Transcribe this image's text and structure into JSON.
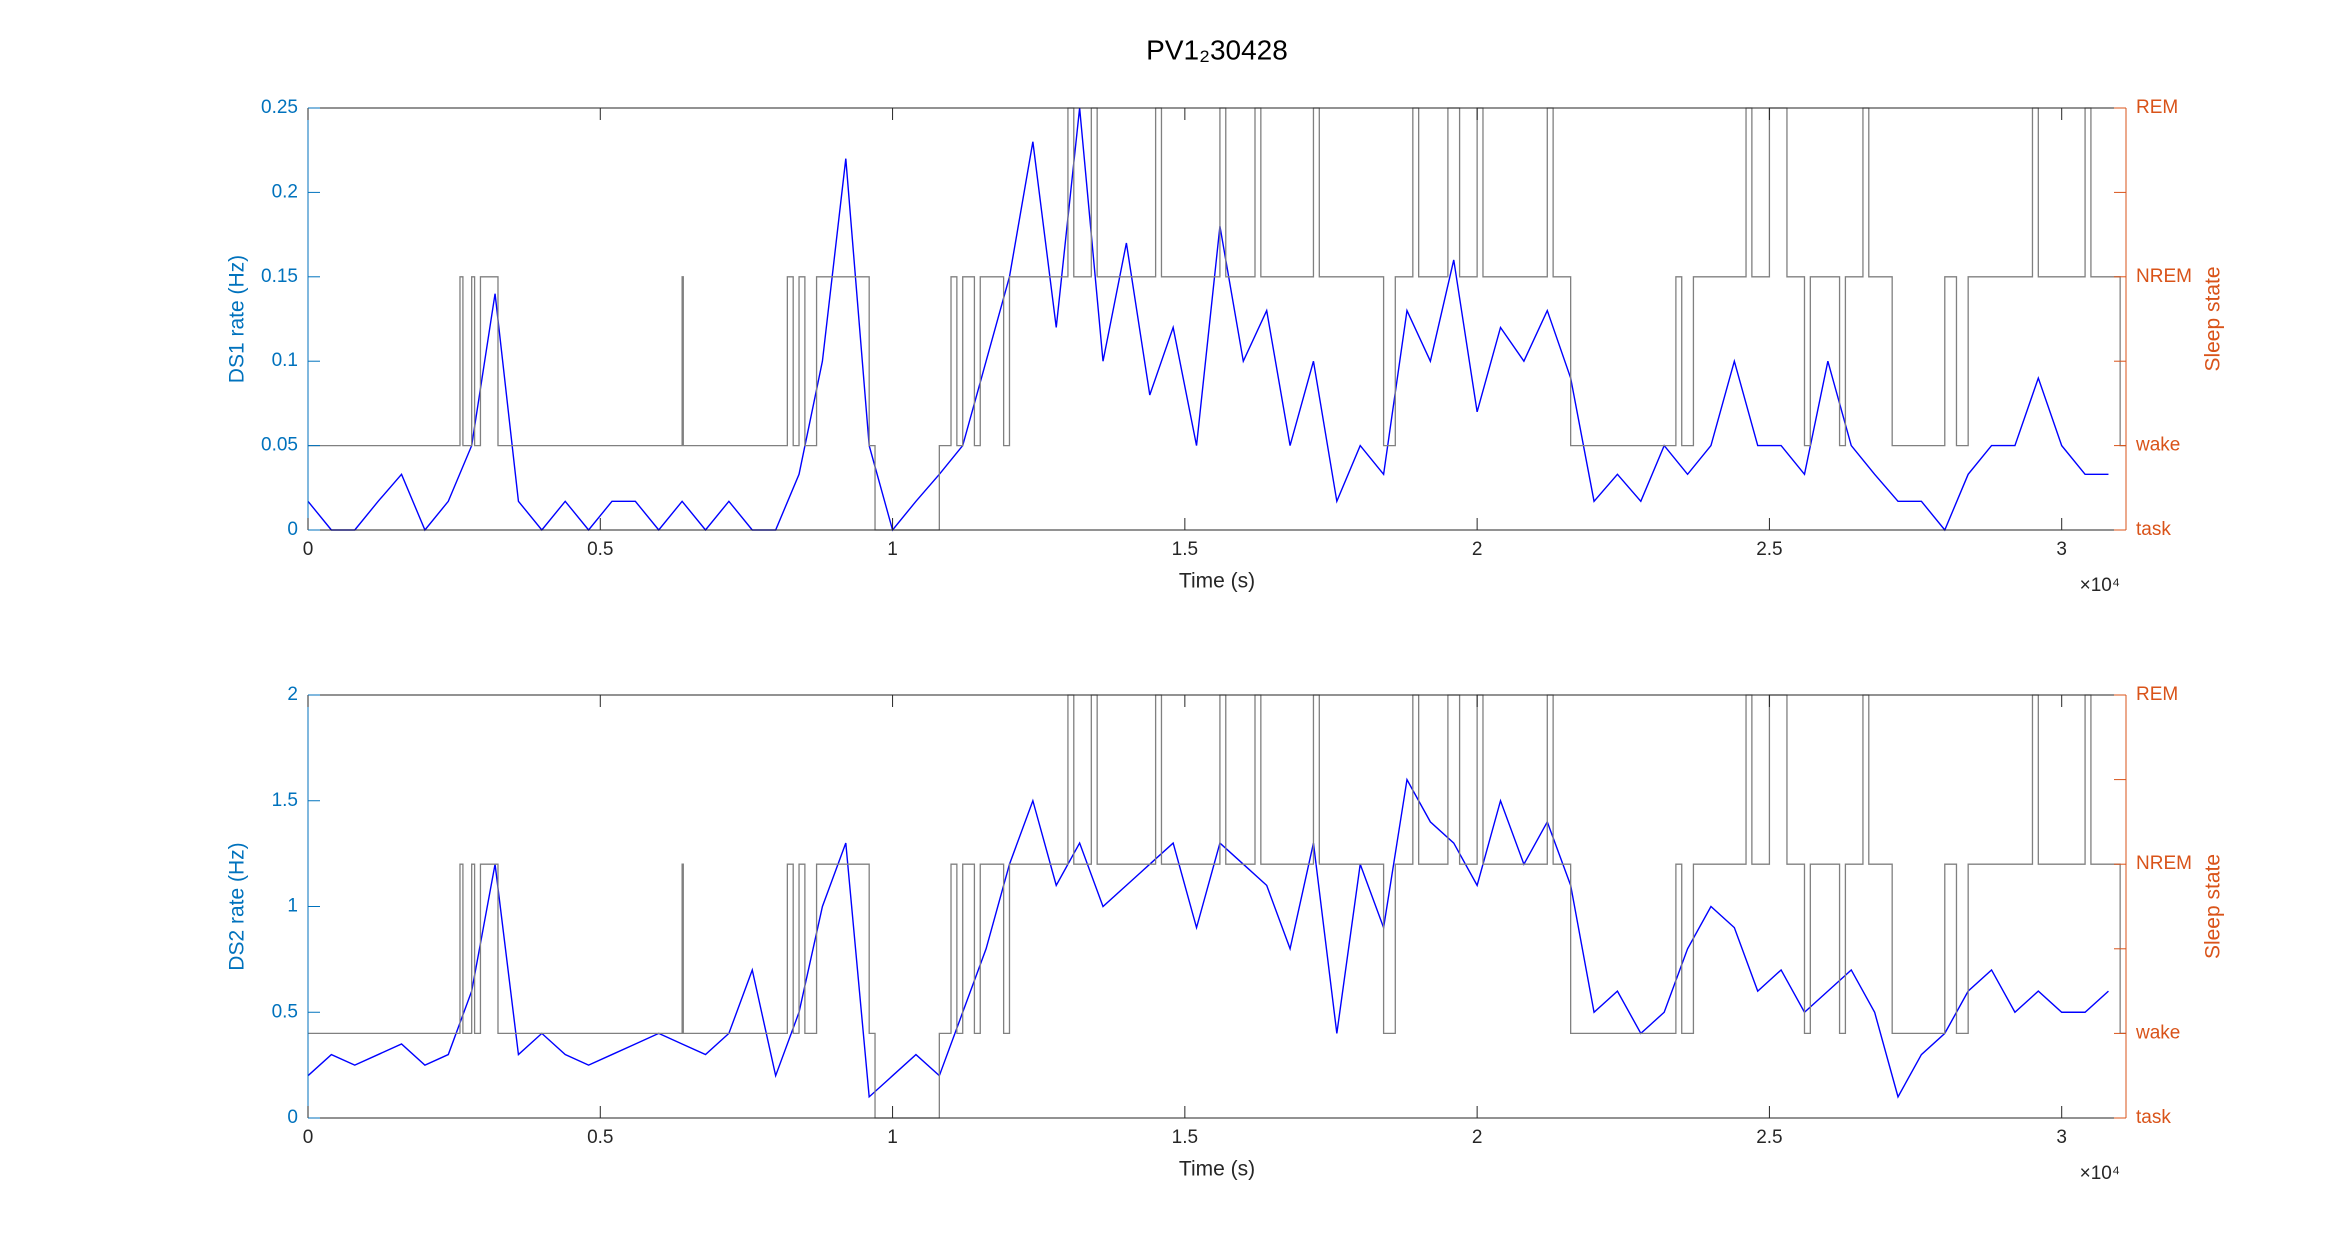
{
  "chart_data": [
    {
      "type": "line",
      "title": "PV1₂30428",
      "xlabel": "Time (s)",
      "ylabel": "DS1 rate (Hz)",
      "y2label": "Sleep state",
      "x_exponent": "×10⁴",
      "xlim": [
        0,
        31100
      ],
      "xticks": [
        {
          "value": 0,
          "label": "0"
        },
        {
          "value": 5000,
          "label": "0.5"
        },
        {
          "value": 10000,
          "label": "1"
        },
        {
          "value": 15000,
          "label": "1.5"
        },
        {
          "value": 20000,
          "label": "2"
        },
        {
          "value": 25000,
          "label": "2.5"
        },
        {
          "value": 30000,
          "label": "3"
        }
      ],
      "ylim": [
        0,
        0.25
      ],
      "yticks": [
        0,
        0.05,
        0.1,
        0.15,
        0.2,
        0.25
      ],
      "y2lim": [
        0,
        5
      ],
      "y2ticks": [
        {
          "value": 0,
          "label": "task"
        },
        {
          "value": 1,
          "label": "wake"
        },
        {
          "value": 3,
          "label": "NREM"
        },
        {
          "value": 5,
          "label": "REM"
        }
      ],
      "y2minorticks": [
        2,
        4
      ],
      "series": [
        {
          "color": "#0000ff",
          "x": [
            0,
            400,
            800,
            1200,
            1600,
            2000,
            2400,
            2800,
            3200,
            3600,
            4000,
            4400,
            4800,
            5200,
            5600,
            6000,
            6400,
            6800,
            7200,
            7600,
            8000,
            8400,
            8800,
            9200,
            9600,
            10000,
            10400,
            10800,
            11200,
            11600,
            12000,
            12400,
            12800,
            13200,
            13600,
            14000,
            14400,
            14800,
            15200,
            15600,
            16000,
            16400,
            16800,
            17200,
            17600,
            18000,
            18400,
            18800,
            19200,
            19600,
            20000,
            20400,
            20800,
            21200,
            21600,
            22000,
            22400,
            22800,
            23200,
            23600,
            24000,
            24400,
            24800,
            25200,
            25600,
            26000,
            26400,
            26800,
            27200,
            27600,
            28000,
            28400,
            28800,
            29200,
            29600,
            30000,
            30400,
            30800
          ],
          "values": [
            0.017,
            0,
            0,
            0.017,
            0.033,
            0,
            0.017,
            0.05,
            0.14,
            0.017,
            0,
            0.017,
            0,
            0.017,
            0.017,
            0,
            0.017,
            0,
            0.017,
            0,
            0,
            0.033,
            0.1,
            0.22,
            0.05,
            0,
            0.017,
            0.033,
            0.05,
            0.1,
            0.15,
            0.23,
            0.12,
            0.25,
            0.1,
            0.17,
            0.08,
            0.12,
            0.05,
            0.18,
            0.1,
            0.13,
            0.05,
            0.1,
            0.017,
            0.05,
            0.033,
            0.13,
            0.1,
            0.16,
            0.07,
            0.12,
            0.1,
            0.13,
            0.09,
            0.017,
            0.033,
            0.017,
            0.05,
            0.033,
            0.05,
            0.1,
            0.05,
            0.05,
            0.033,
            0.1,
            0.05,
            0.033,
            0.017,
            0.017,
            0,
            0.033,
            0.05,
            0.05,
            0.09,
            0.05,
            0.033,
            0.033
          ]
        },
        {
          "color": "#808080",
          "axis": "y2",
          "step": true,
          "x": [
            0,
            2600,
            2650,
            2800,
            2850,
            2950,
            3250,
            6400,
            6420,
            8200,
            8300,
            8400,
            8500,
            8700,
            9600,
            9700,
            10800,
            11000,
            11100,
            11200,
            11400,
            11500,
            11900,
            12000,
            13000,
            13100,
            13400,
            13500,
            14500,
            14600,
            15600,
            15700,
            16200,
            16300,
            17200,
            17300,
            18400,
            18600,
            18900,
            19000,
            19500,
            19700,
            20000,
            20100,
            21200,
            21300,
            21600,
            23400,
            23500,
            23700,
            24600,
            24700,
            25000,
            25300,
            25600,
            25700,
            26200,
            26300,
            26600,
            26700,
            27100,
            28000,
            28200,
            28400,
            29500,
            29600,
            30400,
            30500,
            31000
          ],
          "values": [
            1,
            3,
            1,
            3,
            1,
            3,
            1,
            3,
            1,
            3,
            1,
            3,
            1,
            3,
            1,
            0,
            1,
            3,
            1,
            3,
            1,
            3,
            1,
            3,
            5,
            3,
            5,
            3,
            5,
            3,
            5,
            3,
            5,
            3,
            5,
            3,
            1,
            3,
            5,
            3,
            5,
            3,
            5,
            3,
            5,
            3,
            1,
            3,
            1,
            3,
            5,
            3,
            5,
            3,
            1,
            3,
            1,
            3,
            5,
            3,
            1,
            3,
            1,
            3,
            5,
            3,
            5,
            3,
            1
          ]
        }
      ]
    },
    {
      "type": "line",
      "xlabel": "Time (s)",
      "ylabel": "DS2 rate (Hz)",
      "y2label": "Sleep state",
      "x_exponent": "×10⁴",
      "xlim": [
        0,
        31100
      ],
      "xticks": [
        {
          "value": 0,
          "label": "0"
        },
        {
          "value": 5000,
          "label": "0.5"
        },
        {
          "value": 10000,
          "label": "1"
        },
        {
          "value": 15000,
          "label": "1.5"
        },
        {
          "value": 20000,
          "label": "2"
        },
        {
          "value": 25000,
          "label": "2.5"
        },
        {
          "value": 30000,
          "label": "3"
        }
      ],
      "ylim": [
        0,
        2
      ],
      "yticks": [
        0,
        0.5,
        1,
        1.5,
        2
      ],
      "y2lim": [
        0,
        5
      ],
      "y2ticks": [
        {
          "value": 0,
          "label": "task"
        },
        {
          "value": 1,
          "label": "wake"
        },
        {
          "value": 3,
          "label": "NREM"
        },
        {
          "value": 5,
          "label": "REM"
        }
      ],
      "y2minorticks": [
        2,
        4
      ],
      "series": [
        {
          "color": "#0000ff",
          "x": [
            0,
            400,
            800,
            1200,
            1600,
            2000,
            2400,
            2800,
            3200,
            3600,
            4000,
            4400,
            4800,
            5200,
            5600,
            6000,
            6400,
            6800,
            7200,
            7600,
            8000,
            8400,
            8800,
            9200,
            9600,
            10000,
            10400,
            10800,
            11200,
            11600,
            12000,
            12400,
            12800,
            13200,
            13600,
            14000,
            14400,
            14800,
            15200,
            15600,
            16000,
            16400,
            16800,
            17200,
            17600,
            18000,
            18400,
            18800,
            19200,
            19600,
            20000,
            20400,
            20800,
            21200,
            21600,
            22000,
            22400,
            22800,
            23200,
            23600,
            24000,
            24400,
            24800,
            25200,
            25600,
            26000,
            26400,
            26800,
            27200,
            27600,
            28000,
            28400,
            28800,
            29200,
            29600,
            30000,
            30400,
            30800
          ],
          "values": [
            0.2,
            0.3,
            0.25,
            0.3,
            0.35,
            0.25,
            0.3,
            0.6,
            1.2,
            0.3,
            0.4,
            0.3,
            0.25,
            0.3,
            0.35,
            0.4,
            0.35,
            0.3,
            0.4,
            0.7,
            0.2,
            0.5,
            1.0,
            1.3,
            0.1,
            0.2,
            0.3,
            0.2,
            0.5,
            0.8,
            1.2,
            1.5,
            1.1,
            1.3,
            1.0,
            1.1,
            1.2,
            1.3,
            0.9,
            1.3,
            1.2,
            1.1,
            0.8,
            1.3,
            0.4,
            1.2,
            0.9,
            1.6,
            1.4,
            1.3,
            1.1,
            1.5,
            1.2,
            1.4,
            1.1,
            0.5,
            0.6,
            0.4,
            0.5,
            0.8,
            1.0,
            0.9,
            0.6,
            0.7,
            0.5,
            0.6,
            0.7,
            0.5,
            0.1,
            0.3,
            0.4,
            0.6,
            0.7,
            0.5,
            0.6,
            0.5,
            0.5,
            0.6
          ]
        },
        {
          "color": "#808080",
          "axis": "y2",
          "step": true,
          "x": [
            0,
            2600,
            2650,
            2800,
            2850,
            2950,
            3250,
            6400,
            6420,
            8200,
            8300,
            8400,
            8500,
            8700,
            9600,
            9700,
            10800,
            11000,
            11100,
            11200,
            11400,
            11500,
            11900,
            12000,
            13000,
            13100,
            13400,
            13500,
            14500,
            14600,
            15600,
            15700,
            16200,
            16300,
            17200,
            17300,
            18400,
            18600,
            18900,
            19000,
            19500,
            19700,
            20000,
            20100,
            21200,
            21300,
            21600,
            23400,
            23500,
            23700,
            24600,
            24700,
            25000,
            25300,
            25600,
            25700,
            26200,
            26300,
            26600,
            26700,
            27100,
            28000,
            28200,
            28400,
            29500,
            29600,
            30400,
            30500,
            31000
          ],
          "values": [
            1,
            3,
            1,
            3,
            1,
            3,
            1,
            3,
            1,
            3,
            1,
            3,
            1,
            3,
            1,
            0,
            1,
            3,
            1,
            3,
            1,
            3,
            1,
            3,
            5,
            3,
            5,
            3,
            5,
            3,
            5,
            3,
            5,
            3,
            5,
            3,
            1,
            3,
            5,
            3,
            5,
            3,
            5,
            3,
            5,
            3,
            1,
            3,
            1,
            3,
            5,
            3,
            5,
            3,
            1,
            3,
            1,
            3,
            5,
            3,
            1,
            3,
            1,
            3,
            5,
            3,
            5,
            3,
            1
          ]
        }
      ]
    }
  ]
}
